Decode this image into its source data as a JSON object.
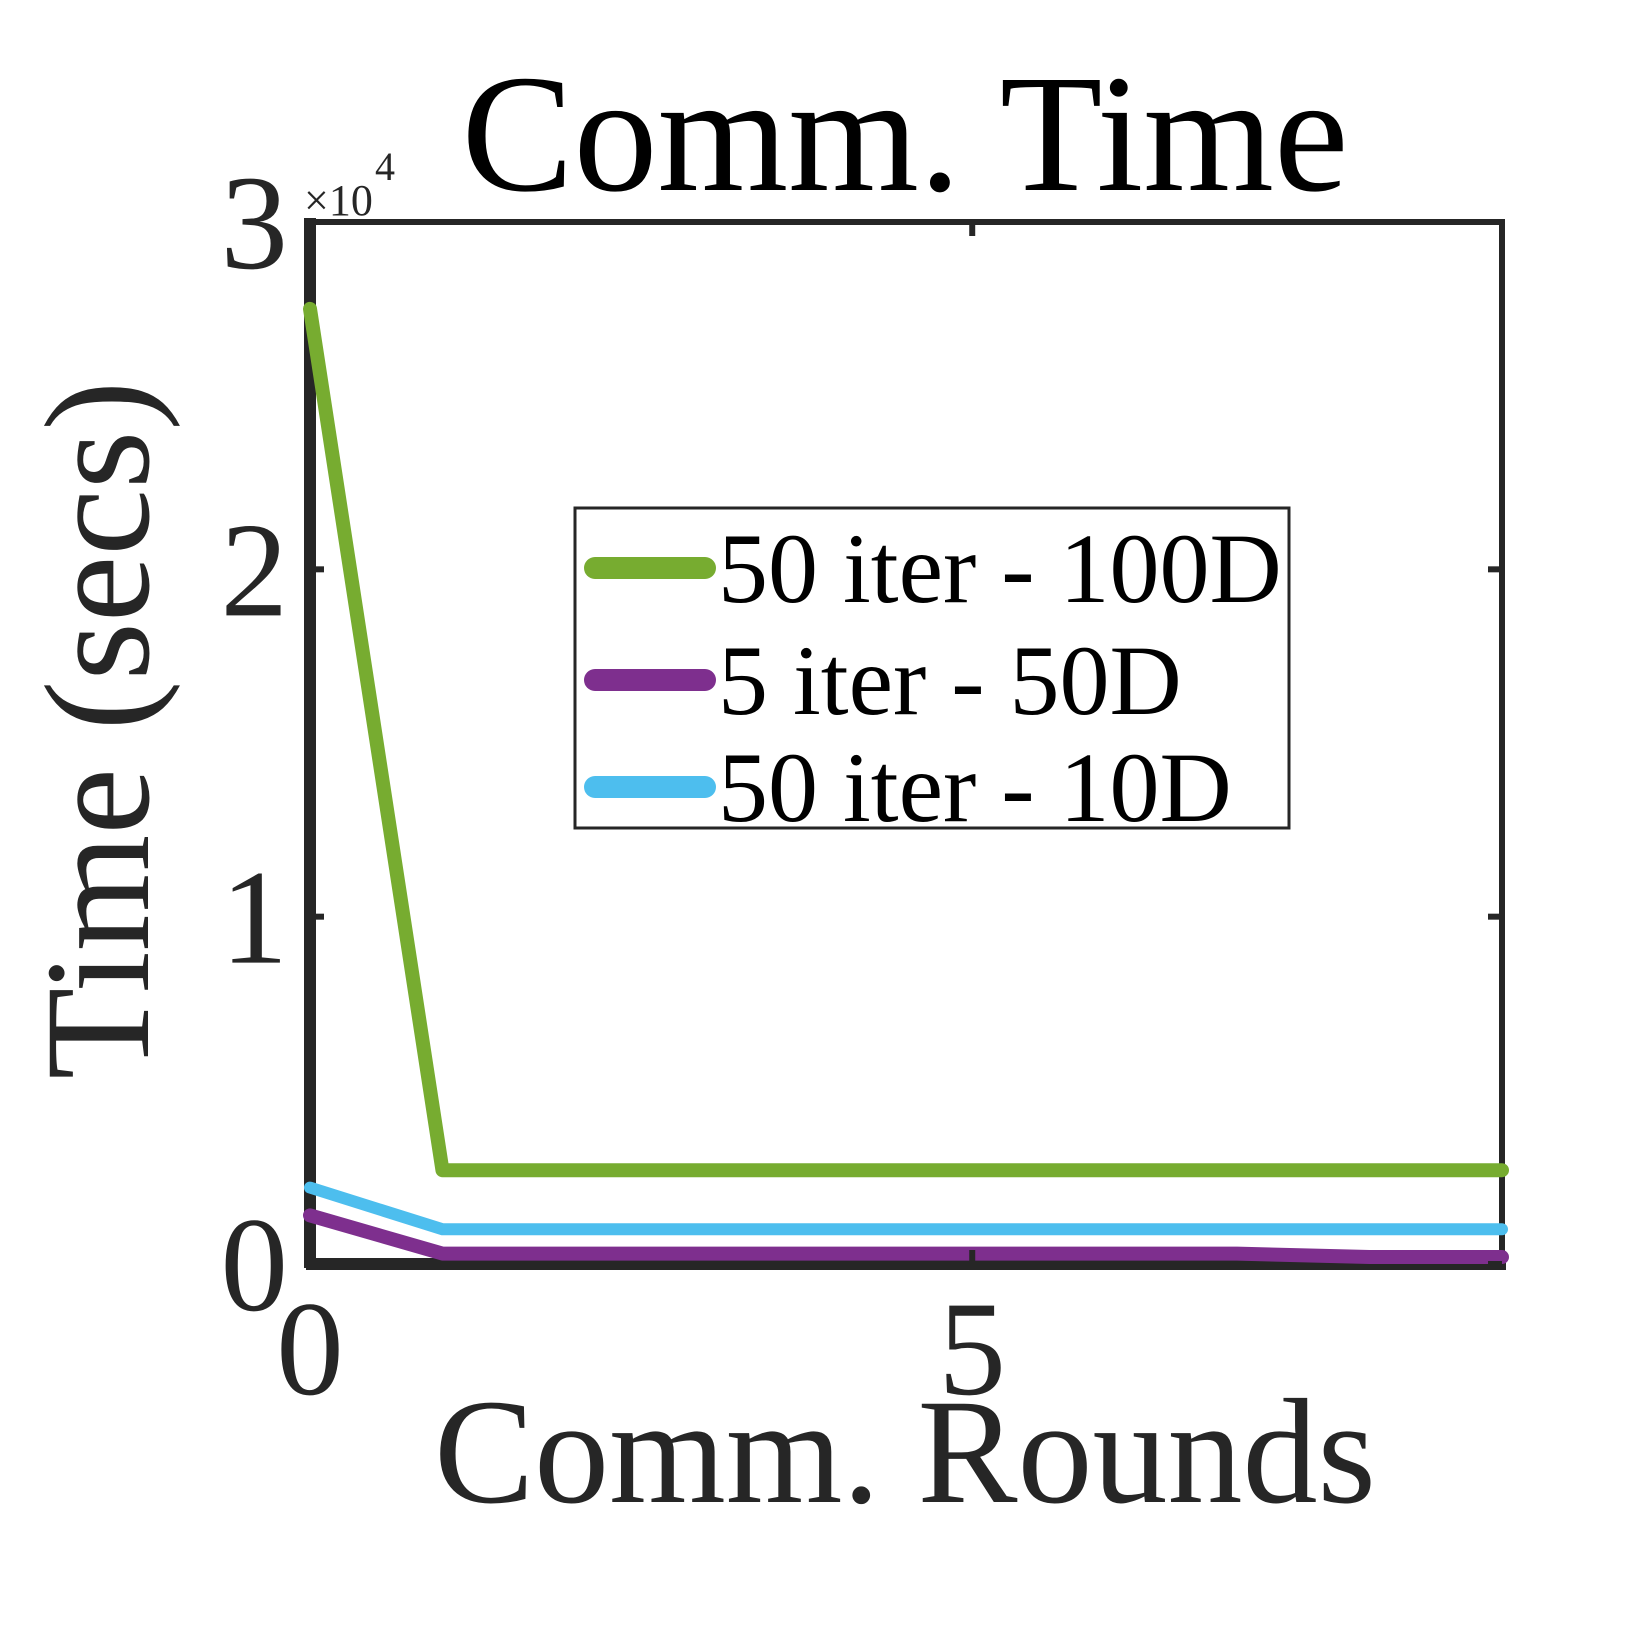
{
  "chart_data": {
    "type": "line",
    "title": "Comm. Time",
    "xlabel": "Comm. Rounds",
    "ylabel": "Time (secs)",
    "y_exponent_label": {
      "base": "×10",
      "power": "4"
    },
    "xlim": [
      0,
      9
    ],
    "ylim": [
      0,
      3
    ],
    "x_ticks": [
      0,
      5
    ],
    "x_tick_labels": [
      "0",
      "5"
    ],
    "y_ticks": [
      0,
      1,
      2,
      3
    ],
    "y_tick_labels": [
      "0",
      "1",
      "2",
      "3"
    ],
    "grid": false,
    "legend_position": "center",
    "x": [
      0,
      1,
      2,
      3,
      4,
      5,
      6,
      7,
      8,
      9
    ],
    "series": [
      {
        "name": "50 iter - 100D",
        "color": "#77ac30",
        "values": [
          2.75,
          0.27,
          0.27,
          0.27,
          0.27,
          0.27,
          0.27,
          0.27,
          0.27,
          0.27
        ]
      },
      {
        "name": "5 iter - 50D",
        "color": "#7e2f8e",
        "values": [
          0.14,
          0.03,
          0.03,
          0.03,
          0.03,
          0.03,
          0.03,
          0.03,
          0.02,
          0.02
        ]
      },
      {
        "name": "50 iter - 10D",
        "color": "#4dbeee",
        "values": [
          0.22,
          0.1,
          0.1,
          0.1,
          0.1,
          0.1,
          0.1,
          0.1,
          0.1,
          0.1
        ]
      }
    ]
  }
}
